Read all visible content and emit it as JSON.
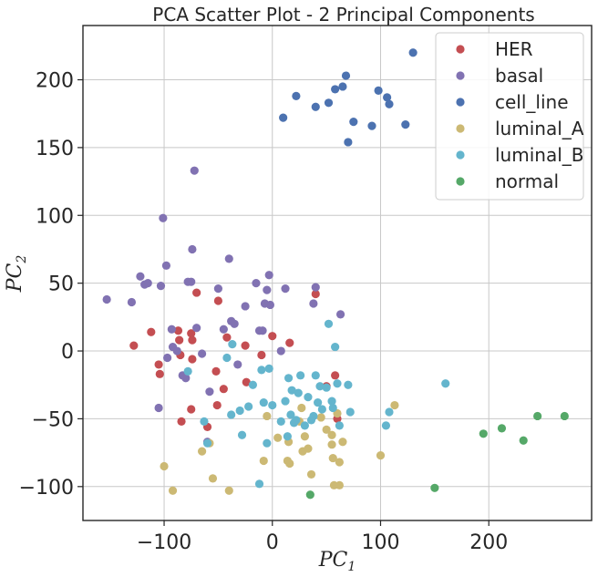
{
  "chart_data": {
    "type": "scatter",
    "title": "PCA Scatter Plot - 2 Principal Components",
    "xlabel": {
      "base": "PC",
      "sub": "1"
    },
    "ylabel": {
      "base": "PC",
      "sub": "2"
    },
    "xlim": [
      -175,
      295
    ],
    "ylim": [
      -125,
      240
    ],
    "xticks": [
      -100,
      0,
      100,
      200
    ],
    "yticks": [
      -100,
      -50,
      0,
      50,
      100,
      150,
      200
    ],
    "xtick_labels": [
      "−100",
      "0",
      "100",
      "200"
    ],
    "ytick_labels": [
      "−100",
      "−50",
      "0",
      "50",
      "100",
      "150",
      "200"
    ],
    "grid": true,
    "legend_position": "top-right",
    "series": [
      {
        "name": "HER",
        "color": "#c44e52",
        "points": [
          [
            -128,
            4
          ],
          [
            -112,
            14
          ],
          [
            -105,
            -10
          ],
          [
            -104,
            -17
          ],
          [
            -87,
            15
          ],
          [
            -86,
            8
          ],
          [
            -85,
            -3
          ],
          [
            -84,
            -52
          ],
          [
            -75,
            13
          ],
          [
            -74,
            8
          ],
          [
            -74,
            -6
          ],
          [
            -75,
            -43
          ],
          [
            -70,
            43
          ],
          [
            -60,
            -56
          ],
          [
            -52,
            -15
          ],
          [
            -51,
            -40
          ],
          [
            -50,
            37
          ],
          [
            -45,
            -28
          ],
          [
            -42,
            10
          ],
          [
            -25,
            4
          ],
          [
            -24,
            -23
          ],
          [
            -10,
            -3
          ],
          [
            0,
            11
          ],
          [
            16,
            6
          ],
          [
            40,
            42
          ],
          [
            50,
            -26
          ],
          [
            58,
            -18
          ],
          [
            60,
            -50
          ]
        ]
      },
      {
        "name": "basal",
        "color": "#8172b2",
        "points": [
          [
            -153,
            38
          ],
          [
            -130,
            36
          ],
          [
            -122,
            55
          ],
          [
            -118,
            49
          ],
          [
            -115,
            50
          ],
          [
            -105,
            -42
          ],
          [
            -103,
            48
          ],
          [
            -101,
            98
          ],
          [
            -98,
            63
          ],
          [
            -97,
            -5
          ],
          [
            -93,
            16
          ],
          [
            -92,
            3
          ],
          [
            -88,
            0
          ],
          [
            -83,
            -18
          ],
          [
            -80,
            -20
          ],
          [
            -78,
            51
          ],
          [
            -75,
            51
          ],
          [
            -74,
            75
          ],
          [
            -72,
            133
          ],
          [
            -70,
            17
          ],
          [
            -65,
            -2
          ],
          [
            -60,
            -67
          ],
          [
            -58,
            -30
          ],
          [
            -50,
            46
          ],
          [
            -45,
            16
          ],
          [
            -40,
            68
          ],
          [
            -38,
            22
          ],
          [
            -35,
            20
          ],
          [
            -32,
            -10
          ],
          [
            -25,
            33
          ],
          [
            -15,
            50
          ],
          [
            -12,
            15
          ],
          [
            -9,
            15
          ],
          [
            -7,
            35
          ],
          [
            -5,
            45
          ],
          [
            -3,
            56
          ],
          [
            -2,
            34
          ],
          [
            8,
            0
          ],
          [
            12,
            46
          ],
          [
            38,
            35
          ],
          [
            40,
            47
          ],
          [
            63,
            27
          ]
        ]
      },
      {
        "name": "cell_line",
        "color": "#4c72b0",
        "points": [
          [
            10,
            172
          ],
          [
            22,
            188
          ],
          [
            40,
            180
          ],
          [
            52,
            183
          ],
          [
            58,
            193
          ],
          [
            65,
            195
          ],
          [
            68,
            203
          ],
          [
            70,
            154
          ],
          [
            75,
            169
          ],
          [
            92,
            166
          ],
          [
            98,
            192
          ],
          [
            106,
            187
          ],
          [
            108,
            182
          ],
          [
            123,
            167
          ],
          [
            130,
            220
          ]
        ]
      },
      {
        "name": "luminal_A",
        "color": "#ccb974",
        "points": [
          [
            -100,
            -85
          ],
          [
            -92,
            -103
          ],
          [
            -65,
            -74
          ],
          [
            -58,
            -68
          ],
          [
            -55,
            -94
          ],
          [
            -40,
            -103
          ],
          [
            -8,
            -81
          ],
          [
            -5,
            -48
          ],
          [
            5,
            -64
          ],
          [
            15,
            -67
          ],
          [
            14,
            -81
          ],
          [
            16,
            -83
          ],
          [
            25,
            -52
          ],
          [
            27,
            -42
          ],
          [
            28,
            -74
          ],
          [
            30,
            -63
          ],
          [
            33,
            -72
          ],
          [
            36,
            -91
          ],
          [
            45,
            -49
          ],
          [
            50,
            -58
          ],
          [
            55,
            -62
          ],
          [
            55,
            -69
          ],
          [
            56,
            -79
          ],
          [
            57,
            -99
          ],
          [
            60,
            -46
          ],
          [
            62,
            -99
          ],
          [
            62,
            -82
          ],
          [
            65,
            -67
          ],
          [
            100,
            -77
          ],
          [
            113,
            -40
          ]
        ]
      },
      {
        "name": "luminal_B",
        "color": "#64b5cd",
        "points": [
          [
            -78,
            -15
          ],
          [
            -63,
            -52
          ],
          [
            -60,
            -68
          ],
          [
            -42,
            -5
          ],
          [
            -38,
            -47
          ],
          [
            -37,
            5
          ],
          [
            -30,
            -44
          ],
          [
            -28,
            -62
          ],
          [
            -22,
            -41
          ],
          [
            -18,
            -25
          ],
          [
            -12,
            -98
          ],
          [
            -10,
            -14
          ],
          [
            -8,
            -38
          ],
          [
            -5,
            -68
          ],
          [
            -3,
            -13
          ],
          [
            0,
            -40
          ],
          [
            8,
            -52
          ],
          [
            12,
            -37
          ],
          [
            14,
            -63
          ],
          [
            15,
            -20
          ],
          [
            17,
            -47
          ],
          [
            18,
            -29
          ],
          [
            20,
            -53
          ],
          [
            22,
            -51
          ],
          [
            24,
            -31
          ],
          [
            26,
            -18
          ],
          [
            30,
            -55
          ],
          [
            33,
            -34
          ],
          [
            36,
            -51
          ],
          [
            38,
            -48
          ],
          [
            40,
            -18
          ],
          [
            42,
            -38
          ],
          [
            44,
            -26
          ],
          [
            46,
            -43
          ],
          [
            50,
            -27
          ],
          [
            52,
            20
          ],
          [
            55,
            -37
          ],
          [
            56,
            -42
          ],
          [
            58,
            3
          ],
          [
            60,
            -24
          ],
          [
            62,
            -55
          ],
          [
            70,
            -25
          ],
          [
            72,
            -45
          ],
          [
            105,
            -55
          ],
          [
            108,
            -45
          ],
          [
            160,
            -24
          ]
        ]
      },
      {
        "name": "normal",
        "color": "#55a868",
        "points": [
          [
            35,
            -106
          ],
          [
            150,
            -101
          ],
          [
            195,
            -61
          ],
          [
            212,
            -57
          ],
          [
            232,
            -66
          ],
          [
            245,
            -48
          ],
          [
            270,
            -48
          ]
        ]
      }
    ]
  }
}
